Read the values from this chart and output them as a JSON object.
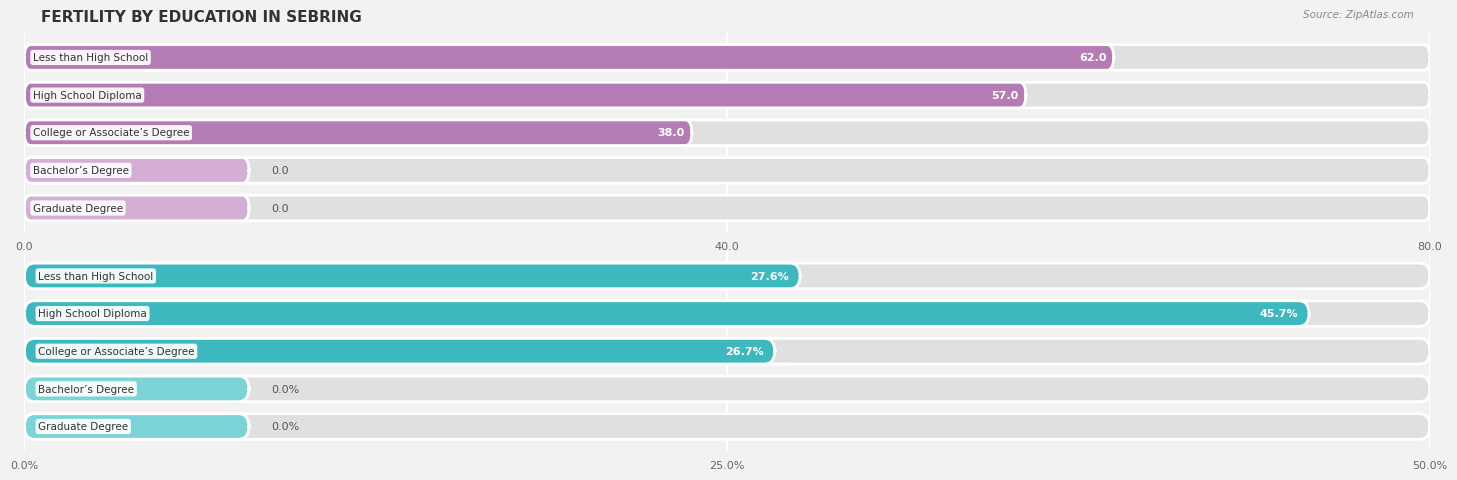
{
  "title": "FERTILITY BY EDUCATION IN SEBRING",
  "source": "Source: ZipAtlas.com",
  "top_chart": {
    "categories": [
      "Less than High School",
      "High School Diploma",
      "College or Associate’s Degree",
      "Bachelor’s Degree",
      "Graduate Degree"
    ],
    "values": [
      62.0,
      57.0,
      38.0,
      0.0,
      0.0
    ],
    "bar_color": "#b57bb5",
    "bar_color_light": "#d4aed4",
    "xlim": [
      0,
      80
    ],
    "xticks": [
      0.0,
      40.0,
      80.0
    ],
    "value_threshold": 10.0,
    "zero_bar_color": "#c9a8c9"
  },
  "bottom_chart": {
    "categories": [
      "Less than High School",
      "High School Diploma",
      "College or Associate’s Degree",
      "Bachelor’s Degree",
      "Graduate Degree"
    ],
    "values": [
      27.6,
      45.7,
      26.7,
      0.0,
      0.0
    ],
    "bar_color": "#3eb8bf",
    "bar_color_light": "#7dd4d8",
    "xlim": [
      0,
      50
    ],
    "xticks": [
      0.0,
      25.0,
      50.0
    ],
    "value_threshold": 10.0,
    "zero_bar_color": "#7dd4d8"
  },
  "bg_color": "#f2f2f2",
  "bar_bg_color": "#e0e0e0",
  "title_fontsize": 11,
  "label_fontsize": 7.5,
  "value_fontsize": 8,
  "tick_fontsize": 8,
  "source_fontsize": 7.5
}
